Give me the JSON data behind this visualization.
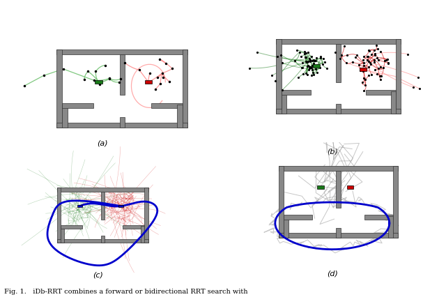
{
  "fig_width": 6.4,
  "fig_height": 4.27,
  "background_color": "#ffffff",
  "caption": "Fig. 1.   iDb-RRT combines a forward or bidirectional RRT search with",
  "subplot_labels": [
    "(a)",
    "(b)",
    "(c)",
    "(d)"
  ],
  "wall_color": "#555555",
  "wall_fill": "#888888",
  "green_color": "#1a7a1a",
  "light_green_color": "#6abf6a",
  "red_color": "#cc0000",
  "light_red_color": "#ff8888",
  "blue_color": "#0000cc",
  "gray_color": "#999999",
  "dark_gray": "#444444"
}
